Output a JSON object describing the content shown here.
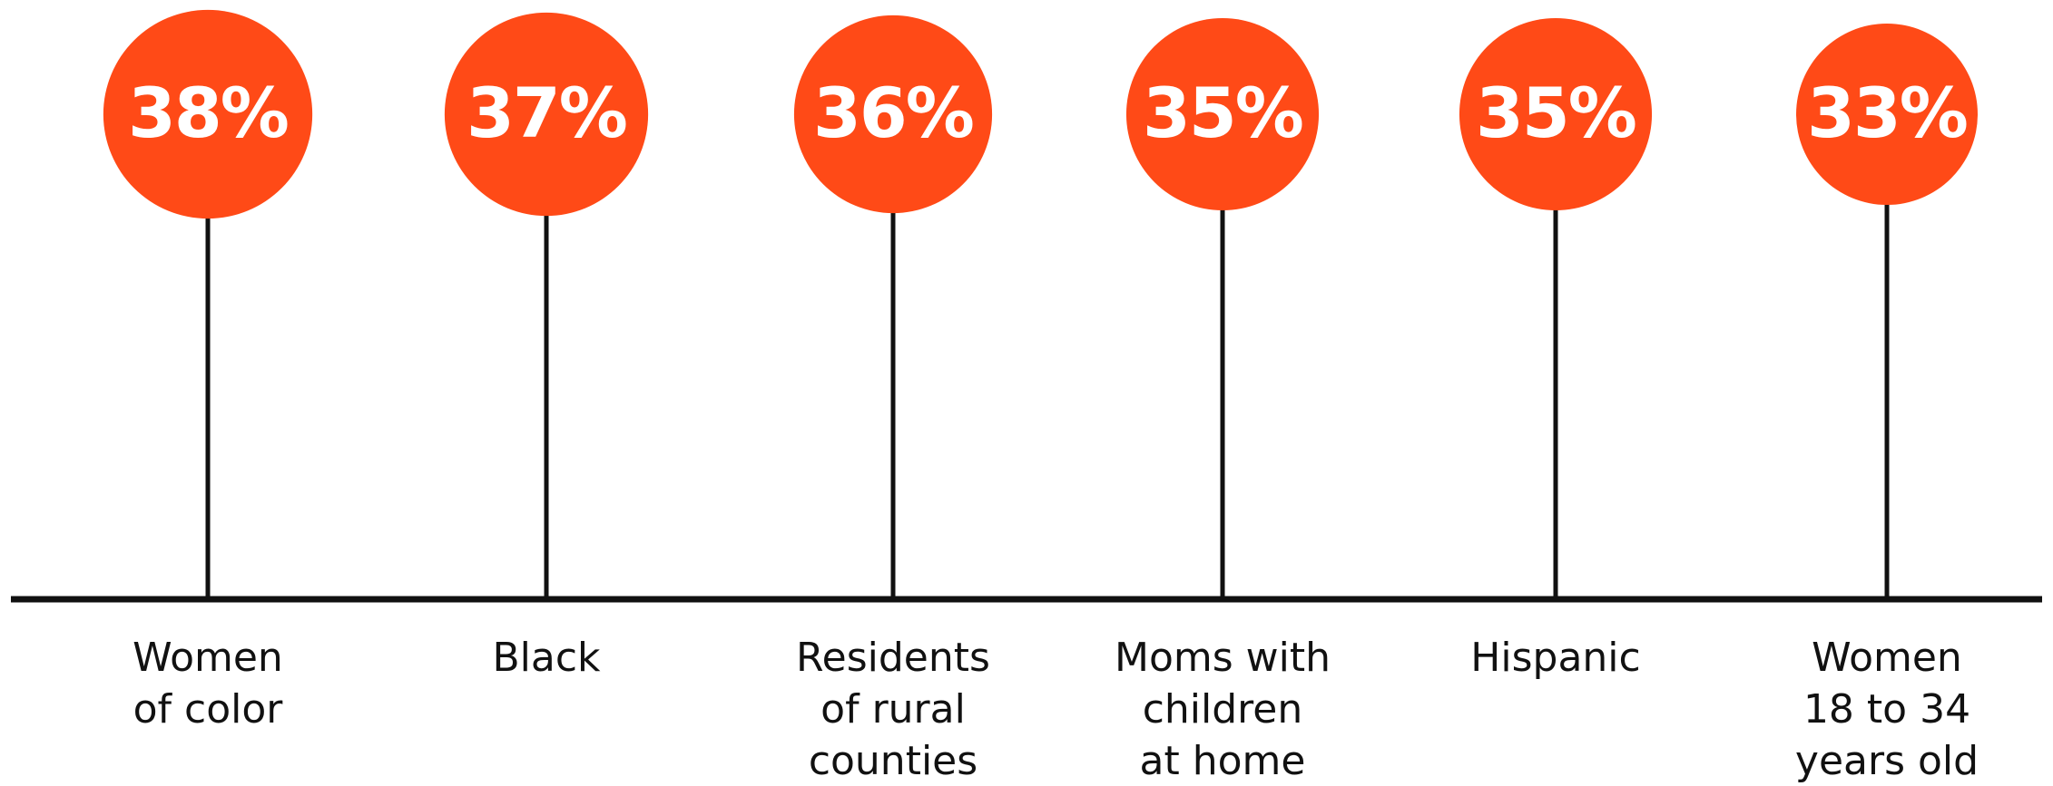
{
  "chart_data": {
    "type": "lollipop",
    "categories": [
      [
        "Women",
        "of color"
      ],
      [
        "Black"
      ],
      [
        "Residents",
        "of rural",
        "counties"
      ],
      [
        "Moms with",
        "children",
        "at home"
      ],
      [
        "Hispanic"
      ],
      [
        "Women",
        "18 to 34",
        "years old"
      ]
    ],
    "values": [
      38,
      37,
      36,
      35,
      35,
      33
    ],
    "value_labels": [
      "38%",
      "37%",
      "36%",
      "35%",
      "35%",
      "33%"
    ],
    "color": "#ff4a17"
  }
}
